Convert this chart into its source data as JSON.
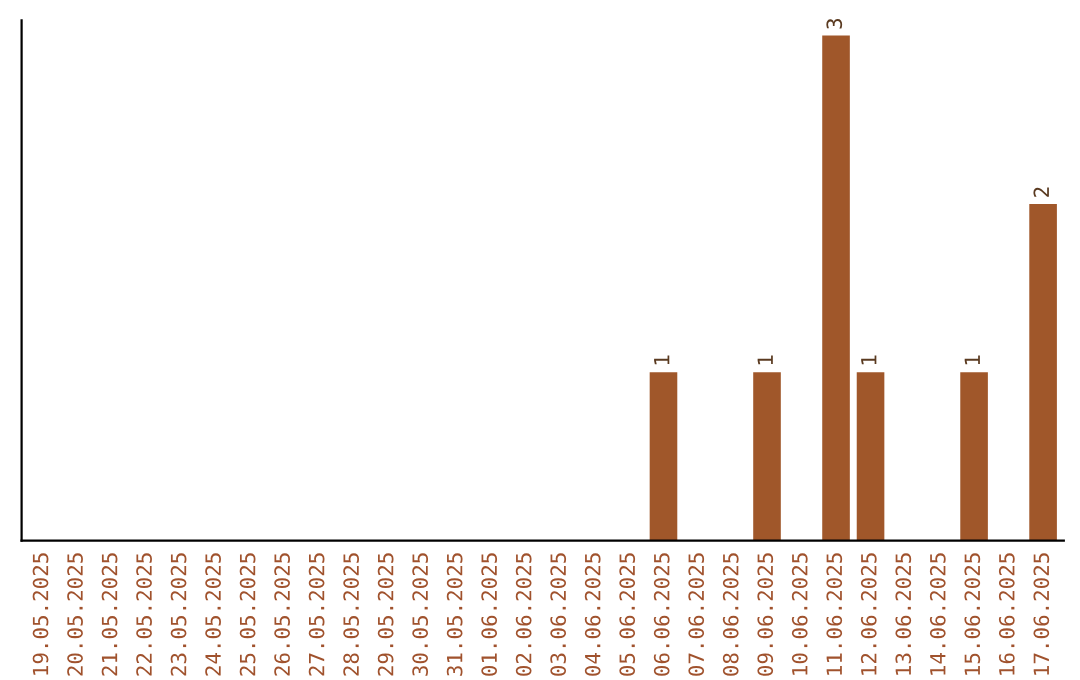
{
  "chart_data": {
    "type": "bar",
    "categories": [
      "19.05.2025",
      "20.05.2025",
      "21.05.2025",
      "22.05.2025",
      "23.05.2025",
      "24.05.2025",
      "25.05.2025",
      "26.05.2025",
      "27.05.2025",
      "28.05.2025",
      "29.05.2025",
      "30.05.2025",
      "31.05.2025",
      "01.06.2025",
      "02.06.2025",
      "03.06.2025",
      "04.06.2025",
      "05.06.2025",
      "06.06.2025",
      "07.06.2025",
      "08.06.2025",
      "09.06.2025",
      "10.06.2025",
      "11.06.2025",
      "12.06.2025",
      "13.06.2025",
      "14.06.2025",
      "15.06.2025",
      "16.06.2025",
      "17.06.2025"
    ],
    "values": [
      null,
      null,
      null,
      null,
      null,
      null,
      null,
      null,
      null,
      null,
      null,
      null,
      null,
      null,
      null,
      null,
      null,
      null,
      1,
      null,
      null,
      1,
      null,
      3,
      1,
      null,
      null,
      1,
      null,
      2
    ],
    "data_labels": true,
    "color": "#a0572a",
    "tick_labels": "x",
    "grid": false,
    "legend": false
  }
}
